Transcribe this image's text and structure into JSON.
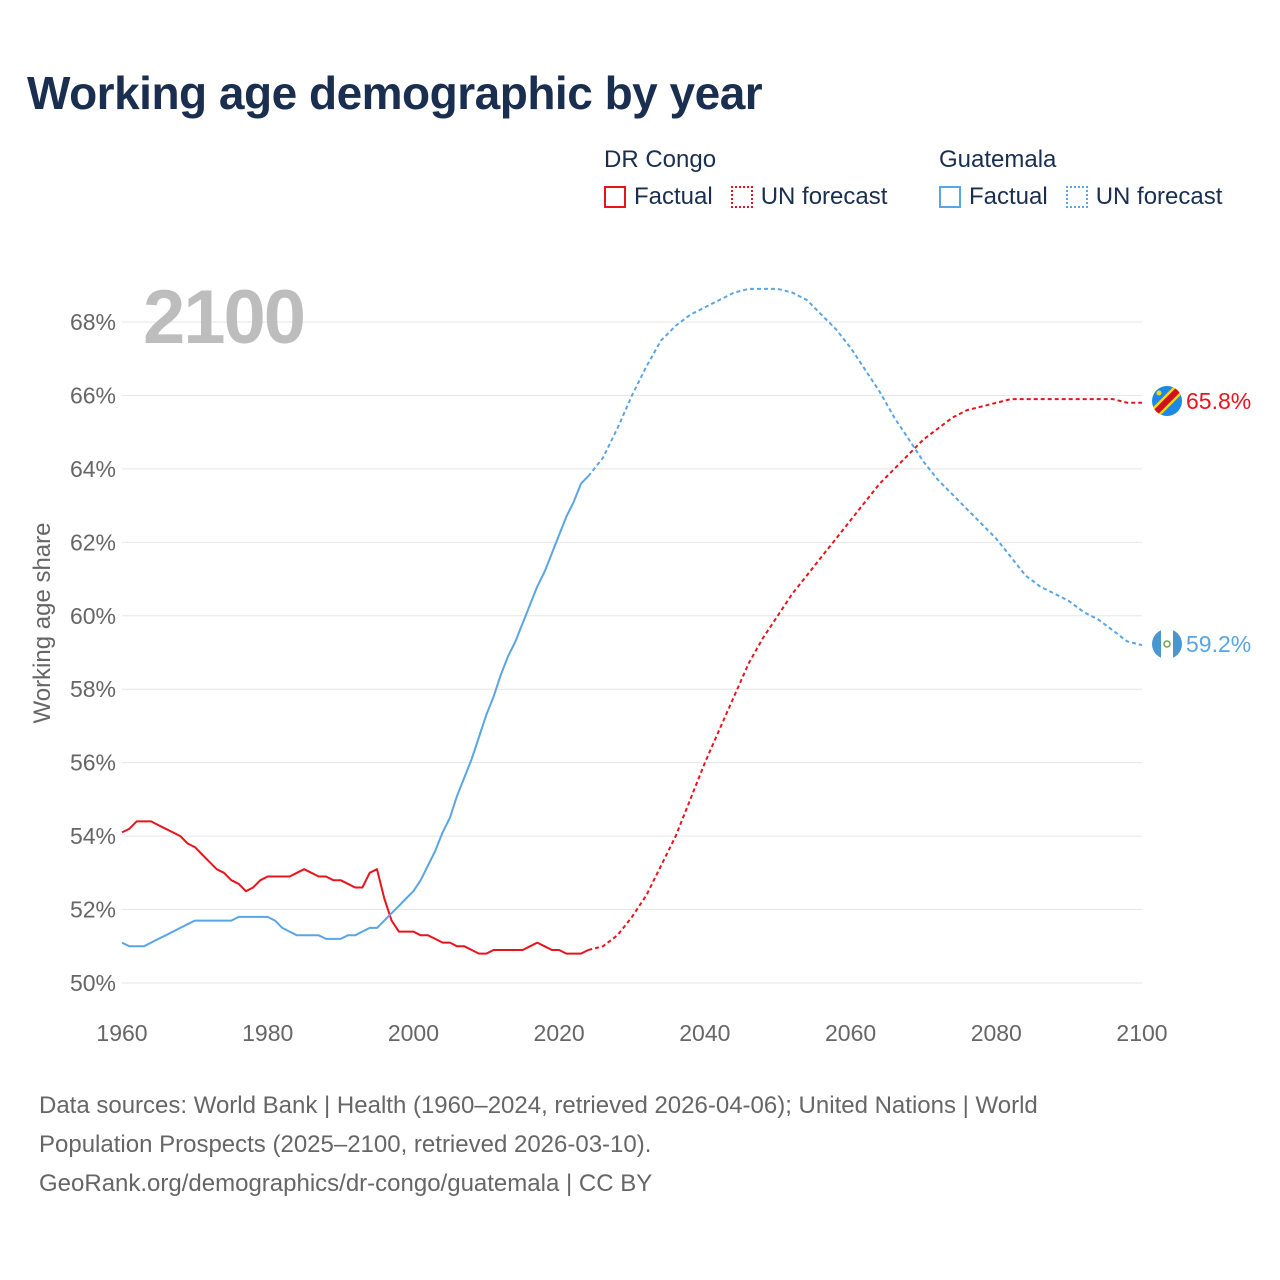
{
  "title": "Working age demographic by year",
  "legend": {
    "groups": [
      {
        "name": "DR Congo",
        "factual_label": "Factual",
        "forecast_label": "UN forecast",
        "color": "#e8141c"
      },
      {
        "name": "Guatemala",
        "factual_label": "Factual",
        "forecast_label": "UN forecast",
        "color": "#5aa5e3"
      }
    ]
  },
  "year_watermark": "2100",
  "footer": {
    "line1": "Data sources: World Bank | Health (1960–2024, retrieved 2026-04-06); United Nations | World",
    "line2": "Population Prospects (2025–2100, retrieved 2026-03-10).",
    "line3": "GeoRank.org/demographics/dr-congo/guatemala | CC BY"
  },
  "chart_data": {
    "type": "line",
    "title": "Working age demographic by year",
    "xlabel": "",
    "ylabel": "Working age share",
    "xlim": [
      1960,
      2100
    ],
    "ylim": [
      50,
      69
    ],
    "x_ticks": [
      1960,
      1980,
      2000,
      2020,
      2040,
      2060,
      2080,
      2100
    ],
    "y_ticks": [
      50,
      52,
      54,
      56,
      58,
      60,
      62,
      64,
      66,
      68
    ],
    "x_tick_labels": [
      "1960",
      "1980",
      "2000",
      "2020",
      "2040",
      "2060",
      "2080",
      "2100"
    ],
    "y_tick_labels": [
      "50%",
      "52%",
      "54%",
      "56%",
      "58%",
      "60%",
      "62%",
      "64%",
      "66%",
      "68%"
    ],
    "grid": true,
    "series": [
      {
        "name": "DR Congo",
        "color": "#e8141c",
        "end_label": "65.8%",
        "factual": {
          "x": [
            1960,
            1961,
            1962,
            1963,
            1964,
            1965,
            1966,
            1967,
            1968,
            1969,
            1970,
            1971,
            1972,
            1973,
            1974,
            1975,
            1976,
            1977,
            1978,
            1979,
            1980,
            1981,
            1982,
            1983,
            1984,
            1985,
            1986,
            1987,
            1988,
            1989,
            1990,
            1991,
            1992,
            1993,
            1994,
            1995,
            1996,
            1997,
            1998,
            1999,
            2000,
            2001,
            2002,
            2003,
            2004,
            2005,
            2006,
            2007,
            2008,
            2009,
            2010,
            2011,
            2012,
            2013,
            2014,
            2015,
            2016,
            2017,
            2018,
            2019,
            2020,
            2021,
            2022,
            2023,
            2024
          ],
          "y": [
            54.1,
            54.2,
            54.4,
            54.4,
            54.4,
            54.3,
            54.2,
            54.1,
            54.0,
            53.8,
            53.7,
            53.5,
            53.3,
            53.1,
            53.0,
            52.8,
            52.7,
            52.5,
            52.6,
            52.8,
            52.9,
            52.9,
            52.9,
            52.9,
            53.0,
            53.1,
            53.0,
            52.9,
            52.9,
            52.8,
            52.8,
            52.7,
            52.6,
            52.6,
            53.0,
            53.1,
            52.3,
            51.7,
            51.4,
            51.4,
            51.4,
            51.3,
            51.3,
            51.2,
            51.1,
            51.1,
            51.0,
            51.0,
            50.9,
            50.8,
            50.8,
            50.9,
            50.9,
            50.9,
            50.9,
            50.9,
            51.0,
            51.1,
            51.0,
            50.9,
            50.9,
            50.8,
            50.8,
            50.8,
            50.9
          ]
        },
        "forecast": {
          "x": [
            2024,
            2026,
            2028,
            2030,
            2032,
            2034,
            2036,
            2038,
            2040,
            2042,
            2044,
            2046,
            2048,
            2050,
            2052,
            2054,
            2056,
            2058,
            2060,
            2062,
            2064,
            2066,
            2068,
            2070,
            2072,
            2074,
            2076,
            2078,
            2080,
            2082,
            2084,
            2086,
            2088,
            2090,
            2092,
            2094,
            2096,
            2098,
            2100
          ],
          "y": [
            50.9,
            51.0,
            51.3,
            51.8,
            52.4,
            53.2,
            54.0,
            55.0,
            56.0,
            56.9,
            57.8,
            58.7,
            59.4,
            60.0,
            60.6,
            61.1,
            61.6,
            62.1,
            62.6,
            63.1,
            63.6,
            64.0,
            64.4,
            64.8,
            65.1,
            65.4,
            65.6,
            65.7,
            65.8,
            65.9,
            65.9,
            65.9,
            65.9,
            65.9,
            65.9,
            65.9,
            65.9,
            65.8,
            65.8
          ]
        }
      },
      {
        "name": "Guatemala",
        "color": "#5aa5e3",
        "end_label": "59.2%",
        "factual": {
          "x": [
            1960,
            1961,
            1962,
            1963,
            1964,
            1965,
            1966,
            1967,
            1968,
            1969,
            1970,
            1971,
            1972,
            1973,
            1974,
            1975,
            1976,
            1977,
            1978,
            1979,
            1980,
            1981,
            1982,
            1983,
            1984,
            1985,
            1986,
            1987,
            1988,
            1989,
            1990,
            1991,
            1992,
            1993,
            1994,
            1995,
            1996,
            1997,
            1998,
            1999,
            2000,
            2001,
            2002,
            2003,
            2004,
            2005,
            2006,
            2007,
            2008,
            2009,
            2010,
            2011,
            2012,
            2013,
            2014,
            2015,
            2016,
            2017,
            2018,
            2019,
            2020,
            2021,
            2022,
            2023,
            2024
          ],
          "y": [
            51.1,
            51.0,
            51.0,
            51.0,
            51.1,
            51.2,
            51.3,
            51.4,
            51.5,
            51.6,
            51.7,
            51.7,
            51.7,
            51.7,
            51.7,
            51.7,
            51.8,
            51.8,
            51.8,
            51.8,
            51.8,
            51.7,
            51.5,
            51.4,
            51.3,
            51.3,
            51.3,
            51.3,
            51.2,
            51.2,
            51.2,
            51.3,
            51.3,
            51.4,
            51.5,
            51.5,
            51.7,
            51.9,
            52.1,
            52.3,
            52.5,
            52.8,
            53.2,
            53.6,
            54.1,
            54.5,
            55.1,
            55.6,
            56.1,
            56.7,
            57.3,
            57.8,
            58.4,
            58.9,
            59.3,
            59.8,
            60.3,
            60.8,
            61.2,
            61.7,
            62.2,
            62.7,
            63.1,
            63.6,
            63.8
          ]
        },
        "forecast": {
          "x": [
            2024,
            2026,
            2028,
            2030,
            2032,
            2034,
            2036,
            2038,
            2040,
            2042,
            2044,
            2046,
            2048,
            2050,
            2052,
            2054,
            2056,
            2058,
            2060,
            2062,
            2064,
            2066,
            2068,
            2070,
            2072,
            2074,
            2076,
            2078,
            2080,
            2082,
            2084,
            2086,
            2088,
            2090,
            2092,
            2094,
            2096,
            2098,
            2100
          ],
          "y": [
            63.8,
            64.3,
            65.1,
            66.0,
            66.8,
            67.5,
            67.9,
            68.2,
            68.4,
            68.6,
            68.8,
            68.9,
            68.9,
            68.9,
            68.8,
            68.6,
            68.2,
            67.8,
            67.3,
            66.7,
            66.1,
            65.4,
            64.8,
            64.2,
            63.7,
            63.3,
            62.9,
            62.5,
            62.1,
            61.6,
            61.1,
            60.8,
            60.6,
            60.4,
            60.1,
            59.9,
            59.6,
            59.3,
            59.2
          ]
        }
      }
    ]
  }
}
